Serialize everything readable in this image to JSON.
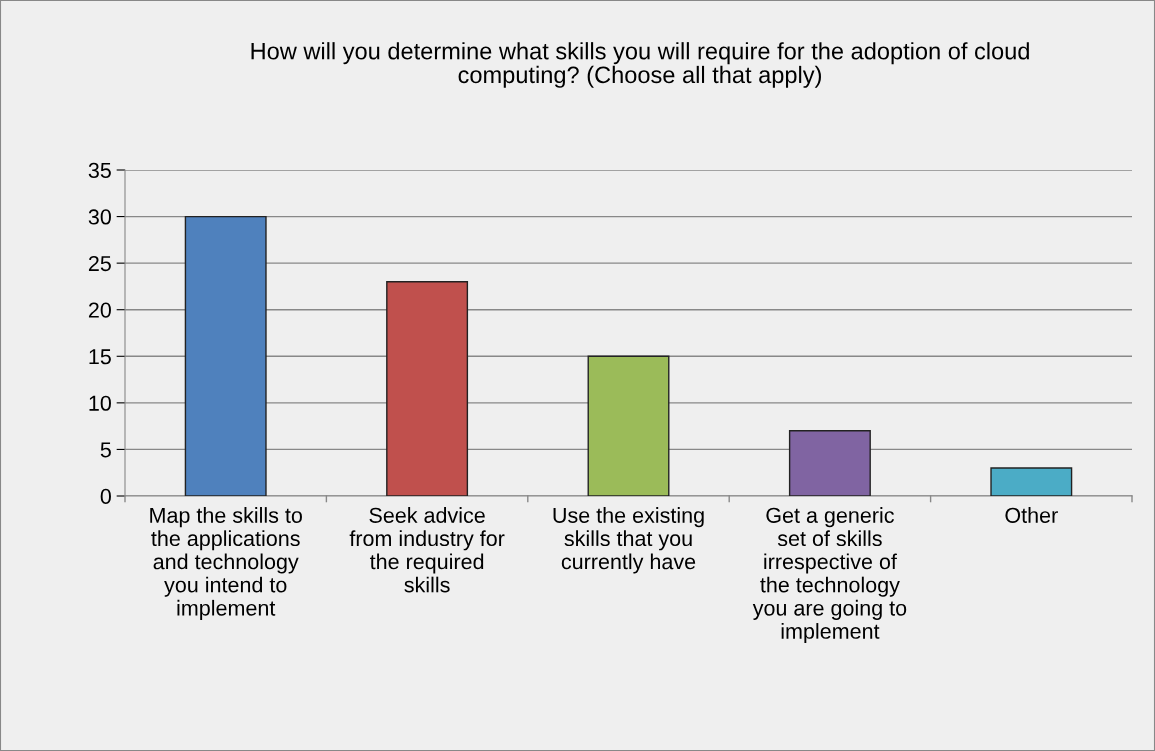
{
  "chart_data": {
    "type": "bar",
    "title": "How will you determine what skills you will require for the adoption of cloud\ncomputing? (Choose all that apply)",
    "categories": [
      "Map the skills to\nthe applications\nand technology\nyou intend to\nimplement",
      "Seek advice\nfrom industry for\nthe required\nskills",
      "Use the existing\nskills that you\ncurrently have",
      "Get a generic\nset of skills\nirrespective of\nthe technology\nyou are going to\nimplement",
      "Other"
    ],
    "values": [
      30,
      23,
      15,
      7,
      3
    ],
    "colors": [
      "#4f81bd",
      "#c0504d",
      "#9bbb59",
      "#8064a2",
      "#4bacc6"
    ],
    "ylim": [
      0,
      35
    ],
    "yticks": [
      0,
      5,
      10,
      15,
      20,
      25,
      30,
      35
    ],
    "grid": "y",
    "legend": false
  }
}
